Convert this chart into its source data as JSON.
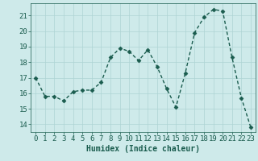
{
  "x": [
    0,
    1,
    2,
    3,
    4,
    5,
    6,
    7,
    8,
    9,
    10,
    11,
    12,
    13,
    14,
    15,
    16,
    17,
    18,
    19,
    20,
    21,
    22,
    23
  ],
  "y": [
    17.0,
    15.8,
    15.8,
    15.5,
    16.1,
    16.2,
    16.2,
    16.7,
    18.3,
    18.9,
    18.7,
    18.1,
    18.8,
    17.7,
    16.3,
    15.1,
    17.3,
    19.9,
    20.9,
    21.4,
    21.3,
    18.3,
    15.7,
    13.8
  ],
  "line_color": "#1a5c4e",
  "marker": "D",
  "marker_size": 2.5,
  "line_width": 1.0,
  "bg_color": "#ceeaea",
  "grid_color": "#aed4d4",
  "xlabel": "Humidex (Indice chaleur)",
  "xlabel_fontsize": 7,
  "xtick_labels": [
    "0",
    "1",
    "2",
    "3",
    "4",
    "5",
    "6",
    "7",
    "8",
    "9",
    "10",
    "11",
    "12",
    "13",
    "14",
    "15",
    "16",
    "17",
    "18",
    "19",
    "20",
    "21",
    "22",
    "23"
  ],
  "ylim": [
    13.5,
    21.8
  ],
  "yticks": [
    14,
    15,
    16,
    17,
    18,
    19,
    20,
    21
  ],
  "tick_fontsize": 6.5
}
